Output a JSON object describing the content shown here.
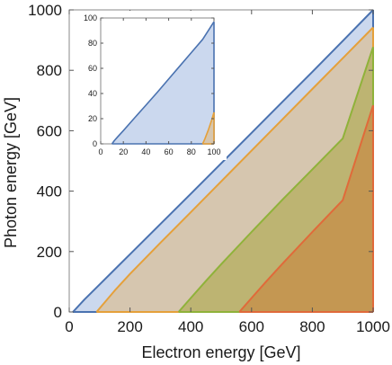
{
  "chart_data": [
    {
      "type": "area",
      "xlabel": "Electron energy [GeV]",
      "ylabel": "Photon energy [GeV]",
      "xlim": [
        0,
        1000
      ],
      "ylim": [
        0,
        1000
      ],
      "x_ticks": [
        0,
        200,
        400,
        600,
        800,
        1000
      ],
      "y_ticks": [
        0,
        200,
        400,
        600,
        800,
        1000
      ],
      "series": [
        {
          "color": "#4a72b0",
          "fill": "#b9cbe8",
          "x": [
            12,
            50,
            100,
            200,
            300,
            400,
            500,
            600,
            700,
            800,
            900,
            1000
          ],
          "y": [
            0,
            41,
            91,
            191,
            291,
            391,
            492,
            593,
            694,
            795,
            897,
            1000
          ]
        },
        {
          "color": "#e5a03a",
          "fill": "#d9c09a",
          "x": [
            90,
            100,
            150,
            200,
            300,
            400,
            500,
            600,
            700,
            800,
            900,
            1000
          ],
          "y": [
            0,
            12,
            71,
            126,
            229,
            330,
            432,
            534,
            636,
            738,
            840,
            942
          ]
        },
        {
          "color": "#8fb23a",
          "fill": "#b4ad5e",
          "x": [
            360,
            370,
            400,
            450,
            500,
            600,
            700,
            800,
            900,
            1000
          ],
          "y": [
            0,
            12,
            46,
            103,
            158,
            265,
            370,
            472,
            574,
            877
          ]
        },
        {
          "color": "#e06a3a",
          "fill": "#c78d48",
          "x": [
            560,
            570,
            600,
            650,
            700,
            800,
            900,
            1000
          ],
          "y": [
            0,
            12,
            46,
            103,
            158,
            265,
            370,
            684
          ]
        }
      ]
    },
    {
      "type": "area",
      "xlim": [
        0,
        100
      ],
      "ylim": [
        0,
        100
      ],
      "x_ticks": [
        0,
        20,
        40,
        60,
        80,
        100
      ],
      "y_ticks": [
        0,
        20,
        40,
        60,
        80,
        100
      ],
      "series": [
        {
          "color": "#4a72b0",
          "fill": "#b9cbe8",
          "x": [
            10,
            12,
            15,
            20,
            30,
            40,
            50,
            60,
            70,
            80,
            90,
            100
          ],
          "y": [
            0,
            2.5,
            5.6,
            10.5,
            20.7,
            30.8,
            41,
            51.5,
            62,
            72.5,
            83,
            97
          ]
        },
        {
          "color": "#e5a03a",
          "fill": "#d9c09a",
          "x": [
            90,
            92,
            95,
            98,
            100
          ],
          "y": [
            0,
            4,
            11,
            19,
            25
          ]
        }
      ]
    }
  ]
}
